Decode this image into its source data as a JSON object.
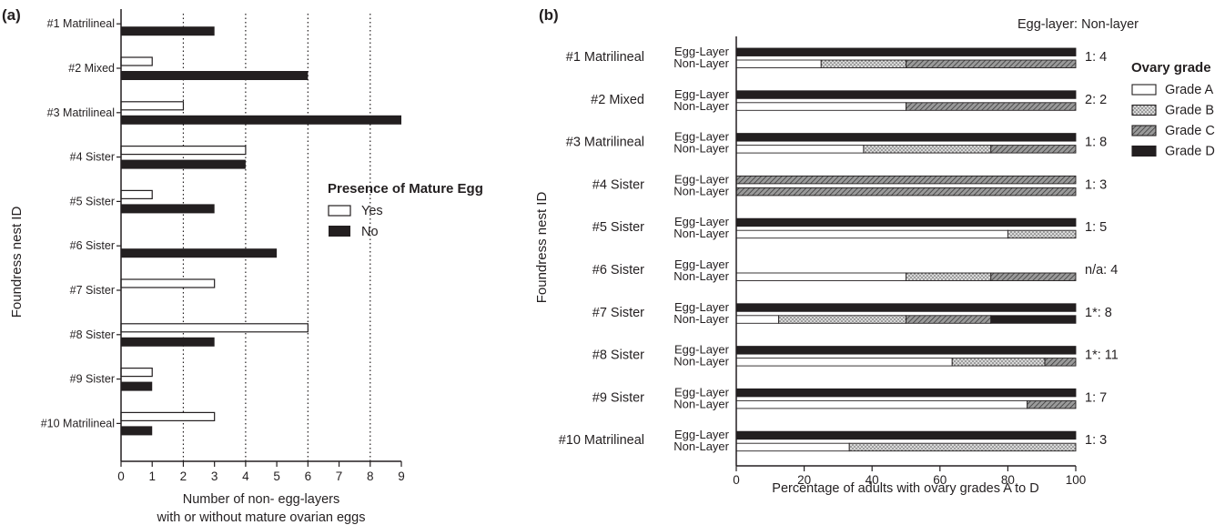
{
  "chart_data": [
    {
      "panel_label": "(a)",
      "type": "bar",
      "orientation": "horizontal",
      "categories": [
        "#1 Matrilineal",
        "#2 Mixed",
        "#3 Matrilineal",
        "#4 Sister",
        "#5 Sister",
        "#6 Sister",
        "#7 Sister",
        "#8 Sister",
        "#9 Sister",
        "#10 Matrilineal"
      ],
      "series": [
        {
          "name": "Yes",
          "color": "#ffffff",
          "values": [
            0,
            1,
            2,
            4,
            1,
            0,
            3,
            6,
            1,
            3
          ]
        },
        {
          "name": "No",
          "color": "#231f20",
          "values": [
            3,
            6,
            9,
            4,
            3,
            5,
            0,
            3,
            1,
            1
          ]
        }
      ],
      "xlabel_line1": "Number of non- egg-layers",
      "xlabel_line2": "with or without mature ovarian eggs",
      "ylabel": "Foundress nest ID",
      "xlim": [
        0,
        9
      ],
      "xticks": [
        0,
        1,
        2,
        3,
        4,
        5,
        6,
        7,
        8,
        9
      ],
      "dotted_gridlines_at": [
        2,
        4,
        6,
        8
      ],
      "legend_title": "Presence of Mature Egg",
      "legend_placement": "right"
    },
    {
      "panel_label": "(b)",
      "type": "bar",
      "orientation": "horizontal",
      "stacked": true,
      "categories": [
        "#1 Matrilineal",
        "#2 Mixed",
        "#3 Matrilineal",
        "#4 Sister",
        "#5 Sister",
        "#6 Sister",
        "#7 Sister",
        "#8 Sister",
        "#9 Sister",
        "#10 Matrilineal"
      ],
      "sub_rows": [
        "Egg-Layer",
        "Non-Layer"
      ],
      "grades": [
        {
          "name": "Grade A",
          "color": "#ffffff",
          "pattern": "none"
        },
        {
          "name": "Grade B",
          "color": "#c8c8c8",
          "pattern": "dots"
        },
        {
          "name": "Grade C",
          "color": "#8a8a8a",
          "pattern": "hatch"
        },
        {
          "name": "Grade D",
          "color": "#231f20",
          "pattern": "none"
        }
      ],
      "values": [
        {
          "egg_layer": [
            0,
            0,
            0,
            100
          ],
          "non_layer": [
            25,
            25,
            50,
            0
          ]
        },
        {
          "egg_layer": [
            0,
            0,
            0,
            100
          ],
          "non_layer": [
            50,
            0,
            50,
            0
          ]
        },
        {
          "egg_layer": [
            0,
            0,
            0,
            100
          ],
          "non_layer": [
            37.5,
            37.5,
            25,
            0
          ]
        },
        {
          "egg_layer": [
            0,
            0,
            100,
            0
          ],
          "non_layer": [
            0,
            0,
            100,
            0
          ]
        },
        {
          "egg_layer": [
            0,
            0,
            0,
            100
          ],
          "non_layer": [
            80,
            20,
            0,
            0
          ]
        },
        {
          "egg_layer": [
            0,
            0,
            0,
            0
          ],
          "non_layer": [
            50,
            25,
            25,
            0
          ]
        },
        {
          "egg_layer": [
            0,
            0,
            0,
            100
          ],
          "non_layer": [
            12.5,
            37.5,
            25,
            25
          ]
        },
        {
          "egg_layer": [
            0,
            0,
            0,
            100
          ],
          "non_layer": [
            63.6,
            27.3,
            9.1,
            0
          ]
        },
        {
          "egg_layer": [
            0,
            0,
            0,
            100
          ],
          "non_layer": [
            85.7,
            0,
            14.3,
            0
          ]
        },
        {
          "egg_layer": [
            0,
            0,
            0,
            100
          ],
          "non_layer": [
            33.3,
            66.7,
            0,
            0
          ]
        }
      ],
      "ratios": [
        "1: 4",
        "2: 2",
        "1: 8",
        "1: 3",
        "1: 5",
        "n/a: 4",
        "1*: 8",
        "1*: 11",
        "1: 7",
        "1: 3"
      ],
      "ratio_header": "Egg-layer: Non-layer",
      "xlabel": "Percentage of adults with ovary grades A to D",
      "ylabel": "Foundress nest ID",
      "xlim": [
        0,
        100
      ],
      "xticks": [
        0,
        20,
        40,
        60,
        80,
        100
      ],
      "legend_title": "Ovary grade",
      "legend_placement": "right"
    }
  ]
}
